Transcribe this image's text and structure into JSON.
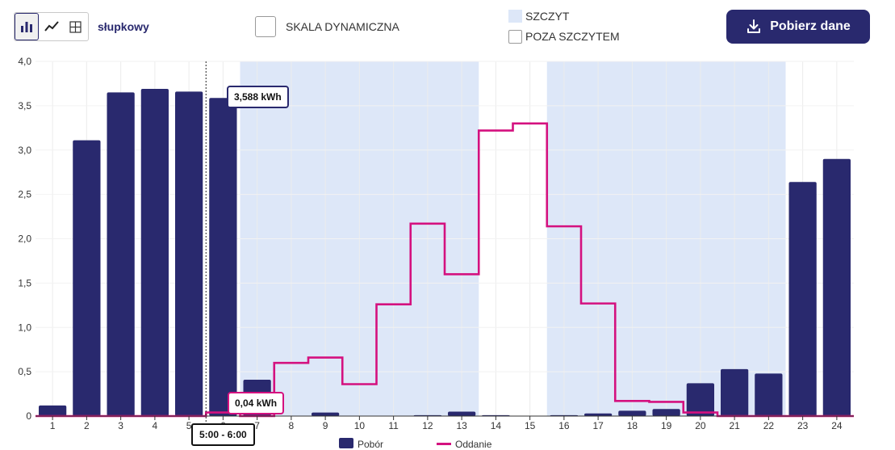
{
  "toolbar": {
    "view_label": "słupkowy",
    "dynamic_scale_label": "SKALA DYNAMICZNA",
    "peak_label": "SZCZYT",
    "offpeak_label": "POZA SZCZYTEM",
    "download_label": "Pobierz dane"
  },
  "tooltips": {
    "pobor_value": "3,588 kWh",
    "oddanie_value": "0,04 kWh",
    "time_range": "5:00 - 6:00"
  },
  "legend": {
    "pobor": "Pobór",
    "oddanie": "Oddanie"
  },
  "colors": {
    "bar": "#29296e",
    "line": "#d4117f",
    "peak_band": "#dde7f8"
  },
  "chart_data": {
    "type": "bar",
    "categories": [
      "1",
      "2",
      "3",
      "4",
      "5",
      "6",
      "7",
      "8",
      "9",
      "10",
      "11",
      "12",
      "13",
      "14",
      "15",
      "16",
      "17",
      "18",
      "19",
      "20",
      "21",
      "22",
      "23",
      "24"
    ],
    "y_tick_labels": [
      "0",
      "0,5",
      "1,0",
      "1,5",
      "2,0",
      "2,5",
      "3,0",
      "3,5",
      "4,0"
    ],
    "ylim": [
      0,
      4.0
    ],
    "peak_ranges": [
      [
        7,
        13
      ],
      [
        16,
        22
      ]
    ],
    "highlight_hour": 6,
    "series": [
      {
        "name": "Pobór",
        "type": "bar",
        "values": [
          0.12,
          3.11,
          3.65,
          3.69,
          3.66,
          3.588,
          0.41,
          0.0,
          0.04,
          0.0,
          0.0,
          0.01,
          0.05,
          0.01,
          0.0,
          0.01,
          0.03,
          0.06,
          0.08,
          0.37,
          0.53,
          0.48,
          2.64,
          2.9
        ]
      },
      {
        "name": "Oddanie",
        "type": "step",
        "values": [
          0.0,
          0.0,
          0.0,
          0.0,
          0.0,
          0.04,
          0.0,
          0.6,
          0.66,
          0.36,
          1.26,
          2.17,
          1.6,
          3.22,
          3.3,
          2.14,
          1.27,
          0.17,
          0.16,
          0.04,
          0.0,
          0.0,
          0.0,
          0.0
        ]
      }
    ]
  }
}
